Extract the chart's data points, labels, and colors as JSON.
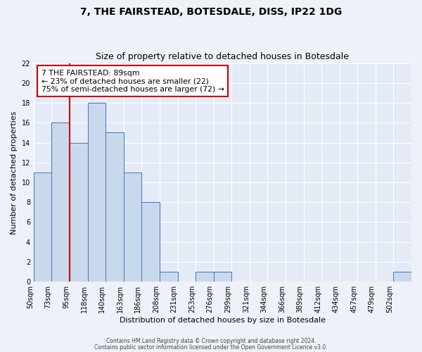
{
  "title": "7, THE FAIRSTEAD, BOTESDALE, DISS, IP22 1DG",
  "subtitle": "Size of property relative to detached houses in Botesdale",
  "xlabel": "Distribution of detached houses by size in Botesdale",
  "ylabel": "Number of detached properties",
  "bin_labels": [
    "50sqm",
    "73sqm",
    "95sqm",
    "118sqm",
    "140sqm",
    "163sqm",
    "186sqm",
    "208sqm",
    "231sqm",
    "253sqm",
    "276sqm",
    "299sqm",
    "321sqm",
    "344sqm",
    "366sqm",
    "389sqm",
    "412sqm",
    "434sqm",
    "457sqm",
    "479sqm",
    "502sqm"
  ],
  "counts": [
    11,
    16,
    14,
    18,
    15,
    11,
    8,
    1,
    0,
    1,
    1,
    0,
    0,
    0,
    0,
    0,
    0,
    0,
    0,
    0,
    1
  ],
  "bar_color": "#c9d9ec",
  "bar_edge_color": "#4472c4",
  "vline_bin": 1,
  "vline_color": "#cc0000",
  "annotation_title": "7 THE FAIRSTEAD: 89sqm",
  "annotation_line1": "← 23% of detached houses are smaller (22)",
  "annotation_line2": "75% of semi-detached houses are larger (72) →",
  "annotation_box_color": "#ffffff",
  "annotation_box_edge": "#cc0000",
  "ylim": [
    0,
    22
  ],
  "yticks": [
    0,
    2,
    4,
    6,
    8,
    10,
    12,
    14,
    16,
    18,
    20,
    22
  ],
  "footer1": "Contains HM Land Registry data © Crown copyright and database right 2024.",
  "footer2": "Contains public sector information licensed under the Open Government Licence v3.0.",
  "bg_color": "#eef2f8",
  "plot_bg_color": "#e4eaf6",
  "title_fontsize": 10,
  "subtitle_fontsize": 9,
  "xlabel_fontsize": 8,
  "ylabel_fontsize": 8,
  "tick_fontsize": 7
}
